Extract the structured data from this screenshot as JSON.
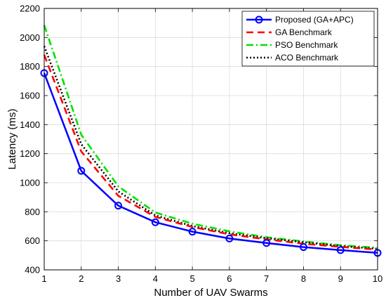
{
  "chart_data": {
    "type": "line",
    "title": "",
    "xlabel": "Number of UAV Swarms",
    "ylabel": "Latency (ms)",
    "xlim": [
      1,
      10
    ],
    "ylim": [
      400,
      2200
    ],
    "xticks": [
      1,
      2,
      3,
      4,
      5,
      6,
      7,
      8,
      9,
      10
    ],
    "yticks": [
      400,
      600,
      800,
      1000,
      1200,
      1400,
      1600,
      1800,
      2000,
      2200
    ],
    "grid": true,
    "legend_position": "top-right",
    "x": [
      1,
      2,
      3,
      4,
      5,
      6,
      7,
      8,
      9,
      10
    ],
    "series": [
      {
        "name": "Proposed (GA+APC)",
        "color": "#0000ff",
        "line_style": "solid",
        "marker": "circle",
        "values": [
          1755,
          1082,
          842,
          728,
          663,
          616,
          585,
          557,
          536,
          517
        ]
      },
      {
        "name": "GA Benchmark",
        "color": "#ff0000",
        "line_style": "dashed",
        "marker": "none",
        "values": [
          1880,
          1215,
          910,
          765,
          695,
          645,
          610,
          580,
          558,
          540
        ]
      },
      {
        "name": "PSO Benchmark",
        "color": "#00e000",
        "line_style": "dash-dot",
        "marker": "none",
        "values": [
          2085,
          1330,
          975,
          795,
          718,
          665,
          625,
          596,
          570,
          552
        ]
      },
      {
        "name": "ACO Benchmark",
        "color": "#000000",
        "line_style": "dotted",
        "marker": "none",
        "values": [
          1940,
          1265,
          940,
          775,
          702,
          652,
          618,
          590,
          564,
          545
        ]
      }
    ]
  }
}
